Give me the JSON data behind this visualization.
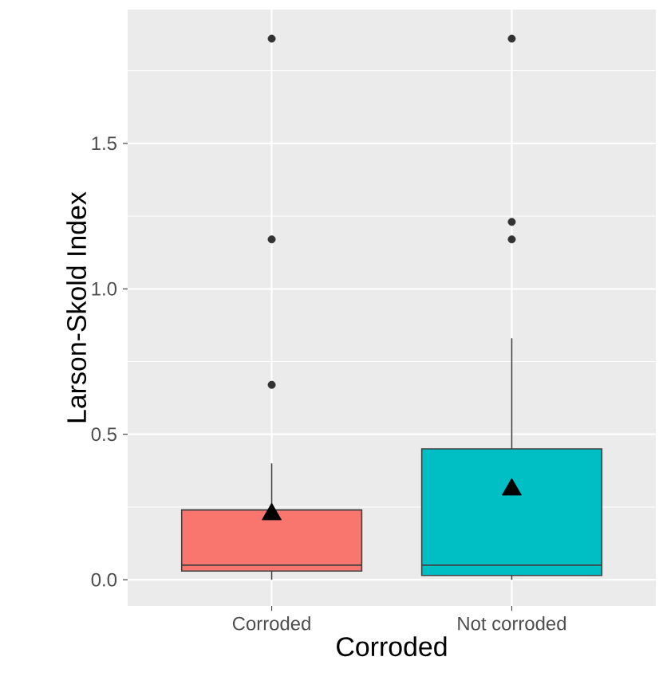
{
  "chart_data": {
    "type": "box",
    "xlabel": "Corroded",
    "ylabel": "Larson-Skold Index",
    "categories": [
      "Corroded",
      "Not corroded"
    ],
    "colors": [
      "#f8766d",
      "#00bfc4"
    ],
    "boxes": [
      {
        "low": 0.0,
        "q1": 0.03,
        "median": 0.05,
        "q3": 0.24,
        "high": 0.4,
        "mean": 0.225,
        "outliers": [
          0.67,
          1.17,
          1.86
        ]
      },
      {
        "low": 0.0,
        "q1": 0.015,
        "median": 0.05,
        "q3": 0.45,
        "high": 0.83,
        "mean": 0.31,
        "outliers": [
          1.17,
          1.23,
          1.86
        ]
      }
    ],
    "ylim": [
      -0.09,
      1.96
    ],
    "yticks": [
      {
        "value": 0,
        "label": "0.0"
      },
      0.5,
      {
        "value": 1,
        "label": "1.0"
      },
      1.5
    ],
    "grid": true
  }
}
